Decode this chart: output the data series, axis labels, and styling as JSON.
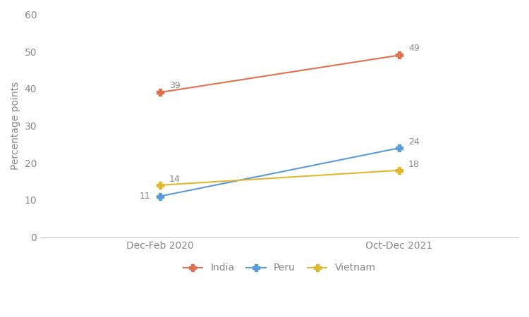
{
  "x_labels": [
    "Dec-Feb 2020",
    "Oct-Dec 2021"
  ],
  "x_positions": [
    0.25,
    0.75
  ],
  "series": [
    {
      "name": "India",
      "values": [
        39,
        49
      ],
      "color": "#E07050",
      "marker": "P"
    },
    {
      "name": "Peru",
      "values": [
        11,
        24
      ],
      "color": "#5B9BD5",
      "marker": "P"
    },
    {
      "name": "Vietnam",
      "values": [
        14,
        18
      ],
      "color": "#E0B830",
      "marker": "P"
    }
  ],
  "ylabel": "Percentage points",
  "ylim": [
    0,
    60
  ],
  "yticks": [
    0,
    10,
    20,
    30,
    40,
    50,
    60
  ],
  "ann_data": [
    {
      "xi": 0,
      "y": 39,
      "text": "39",
      "ha": "left",
      "va": "bottom",
      "xoff": 0.02,
      "yoff": 0.6
    },
    {
      "xi": 1,
      "y": 49,
      "text": "49",
      "ha": "left",
      "va": "bottom",
      "xoff": 0.02,
      "yoff": 0.6
    },
    {
      "xi": 0,
      "y": 11,
      "text": "11",
      "ha": "right",
      "va": "center",
      "xoff": -0.02,
      "yoff": 0.0
    },
    {
      "xi": 1,
      "y": 24,
      "text": "24",
      "ha": "left",
      "va": "bottom",
      "xoff": 0.02,
      "yoff": 0.4
    },
    {
      "xi": 0,
      "y": 14,
      "text": "14",
      "ha": "left",
      "va": "bottom",
      "xoff": 0.02,
      "yoff": 0.4
    },
    {
      "xi": 1,
      "y": 18,
      "text": "18",
      "ha": "left",
      "va": "bottom",
      "xoff": 0.02,
      "yoff": 0.4
    }
  ],
  "legend_fontsize": 10,
  "axis_fontsize": 10,
  "label_fontsize": 9,
  "line_width": 1.5,
  "marker_size": 7,
  "background_color": "#ffffff",
  "text_color": "#888888"
}
